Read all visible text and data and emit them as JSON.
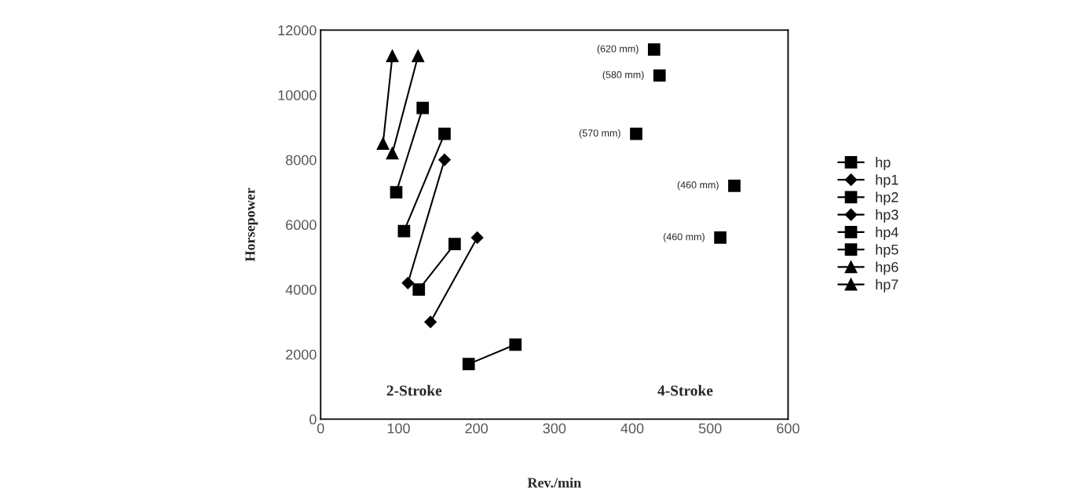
{
  "chart_data": {
    "type": "line",
    "xlabel": "Rev./min",
    "ylabel": "Horsepower",
    "xlim": [
      0,
      600
    ],
    "xticks": [
      0,
      100,
      200,
      300,
      400,
      500,
      600
    ],
    "ylim": [
      0,
      12000
    ],
    "yticks": [
      0,
      2000,
      4000,
      6000,
      8000,
      10000,
      12000
    ],
    "grid": false,
    "legend": "right",
    "line_style": "solid",
    "series": [
      {
        "name": "hp",
        "color": "#000000",
        "marker": "square",
        "x": [
          190,
          250
        ],
        "values": [
          1700,
          2300
        ]
      },
      {
        "name": "hp1",
        "color": "#000000",
        "marker": "diamond",
        "x": [
          141,
          201
        ],
        "values": [
          3000,
          5600
        ]
      },
      {
        "name": "hp2",
        "color": "#000000",
        "marker": "square",
        "x": [
          126,
          172
        ],
        "values": [
          4000,
          5400
        ]
      },
      {
        "name": "hp3",
        "color": "#000000",
        "marker": "diamond",
        "x": [
          112,
          159
        ],
        "values": [
          4200,
          8000
        ]
      },
      {
        "name": "hp4",
        "color": "#000000",
        "marker": "square",
        "x": [
          107,
          159
        ],
        "values": [
          5800,
          8800
        ]
      },
      {
        "name": "hp5",
        "color": "#000000",
        "marker": "square",
        "x": [
          97,
          131
        ],
        "values": [
          7000,
          9600
        ]
      },
      {
        "name": "hp6",
        "color": "#000000",
        "marker": "triangle",
        "x": [
          92,
          125
        ],
        "values": [
          8200,
          11200
        ]
      },
      {
        "name": "hp7",
        "color": "#000000",
        "marker": "triangle",
        "x": [
          80,
          92
        ],
        "values": [
          8500,
          11200
        ]
      },
      {
        "type": "scatter",
        "color": "#000000",
        "marker": "square",
        "x": [
          428,
          435,
          405,
          531,
          513
        ],
        "values": [
          11400,
          10600,
          8800,
          7200,
          5600
        ]
      }
    ],
    "annotations": [
      {
        "text": "(620 mm)",
        "x": 428,
        "y": 11400
      },
      {
        "text": "(580 mm)",
        "x": 435,
        "y": 10600
      },
      {
        "text": "(570 mm)",
        "x": 405,
        "y": 8800
      },
      {
        "text": "(460 mm)",
        "x": 531,
        "y": 7200
      },
      {
        "text": "(460 mm)",
        "x": 513,
        "y": 5600
      },
      "2-Stroke",
      "4-Stroke"
    ]
  }
}
